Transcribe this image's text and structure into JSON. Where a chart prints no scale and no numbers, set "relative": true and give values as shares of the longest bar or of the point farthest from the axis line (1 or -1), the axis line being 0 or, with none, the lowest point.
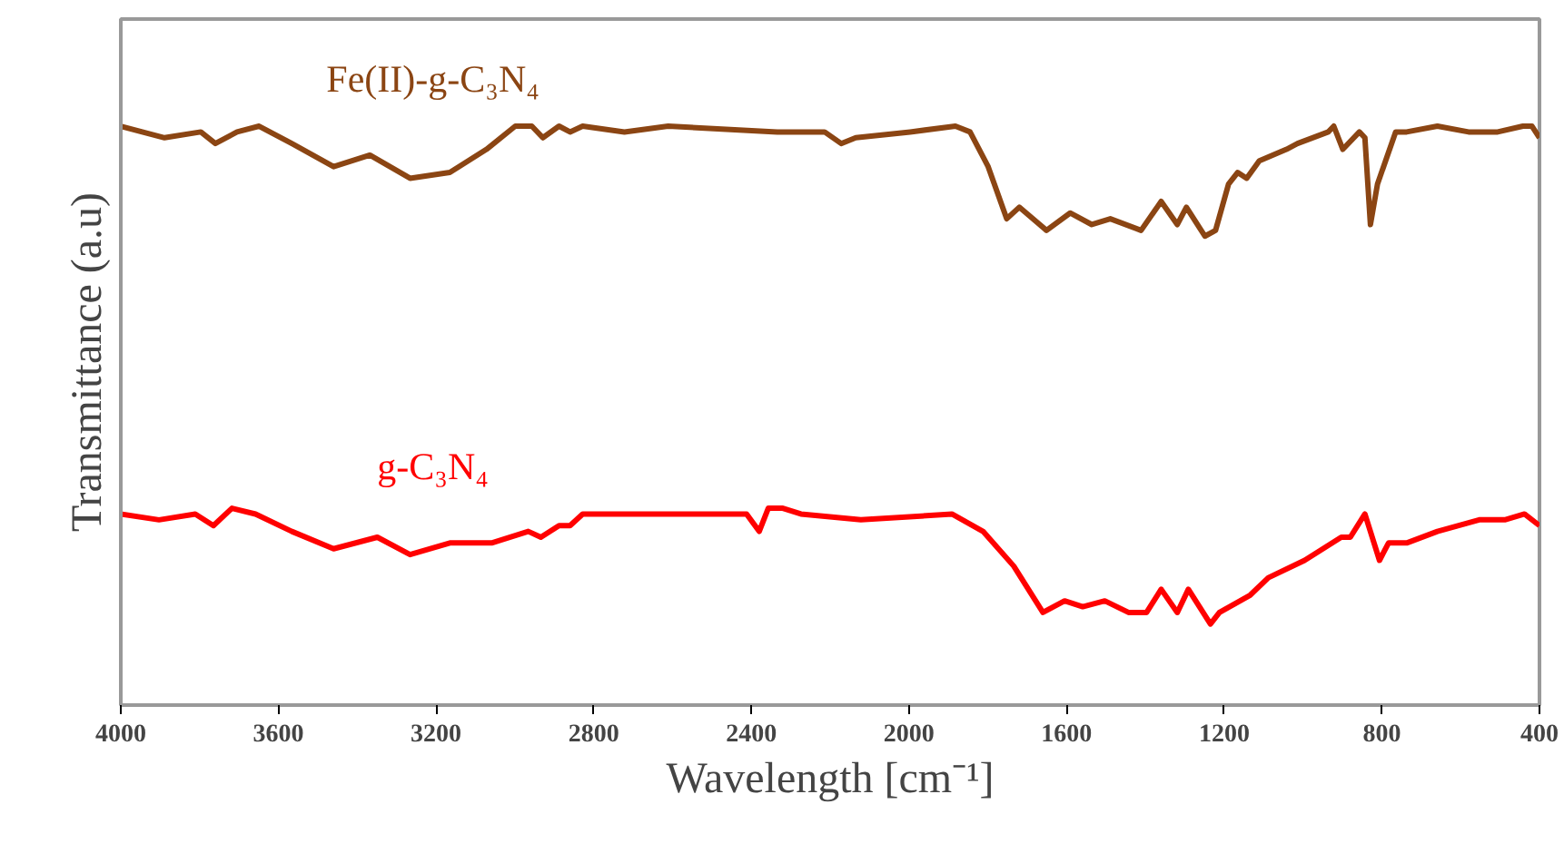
{
  "chart_data": {
    "type": "line",
    "xlabel": "Wavelength [cm⁻¹]",
    "ylabel": "Transmittance (a.u)",
    "relative": true,
    "xlim": [
      4000,
      400
    ],
    "xticks": [
      4000,
      3600,
      3200,
      2800,
      2400,
      2000,
      1600,
      1200,
      800,
      400
    ],
    "grid": false,
    "tick_labels": "x",
    "series": [
      {
        "name": "Fe(II)-g-C₃N₄",
        "color": "#8b4513",
        "x": [
          4000,
          3889,
          3797,
          3760,
          3705,
          3649,
          3566,
          3460,
          3368,
          3266,
          3165,
          3072,
          2999,
          2957,
          2929,
          2888,
          2860,
          2828,
          2722,
          2611,
          2334,
          2274,
          2214,
          2172,
          2135,
          1997,
          1882,
          1845,
          1799,
          1752,
          1720,
          1651,
          1591,
          1536,
          1489,
          1411,
          1360,
          1319,
          1296,
          1249,
          1222,
          1189,
          1166,
          1143,
          1111,
          1042,
          1014,
          936,
          922,
          899,
          857,
          843,
          829,
          811,
          765,
          737,
          659,
          580,
          506,
          442,
          419,
          400
        ],
        "values": [
          1.0,
          0.98,
          0.99,
          0.97,
          0.99,
          1.0,
          0.97,
          0.93,
          0.95,
          0.91,
          0.92,
          0.96,
          1.0,
          1.0,
          0.98,
          1.0,
          0.99,
          1.0,
          0.99,
          1.0,
          0.99,
          0.99,
          0.99,
          0.97,
          0.98,
          0.99,
          1.0,
          0.99,
          0.93,
          0.84,
          0.86,
          0.82,
          0.85,
          0.83,
          0.84,
          0.82,
          0.87,
          0.83,
          0.86,
          0.81,
          0.82,
          0.9,
          0.92,
          0.91,
          0.94,
          0.96,
          0.97,
          0.99,
          1.0,
          0.96,
          0.99,
          0.98,
          0.83,
          0.9,
          0.99,
          0.99,
          1.0,
          0.99,
          0.99,
          1.0,
          1.0,
          0.98
        ]
      },
      {
        "name": "g-C₃N₄",
        "color": "#ff0000",
        "x": [
          4000,
          3903,
          3811,
          3765,
          3718,
          3658,
          3566,
          3460,
          3349,
          3266,
          3165,
          3059,
          2966,
          2934,
          2888,
          2860,
          2828,
          2643,
          2412,
          2380,
          2357,
          2320,
          2274,
          2122,
          1891,
          1812,
          1734,
          1660,
          1605,
          1559,
          1503,
          1443,
          1397,
          1360,
          1319,
          1291,
          1235,
          1212,
          1134,
          1088,
          996,
          903,
          880,
          843,
          806,
          783,
          737,
          659,
          553,
          488,
          438,
          400
        ],
        "values": [
          0.33,
          0.32,
          0.33,
          0.31,
          0.34,
          0.33,
          0.3,
          0.27,
          0.29,
          0.26,
          0.28,
          0.28,
          0.3,
          0.29,
          0.31,
          0.31,
          0.33,
          0.33,
          0.33,
          0.3,
          0.34,
          0.34,
          0.33,
          0.32,
          0.33,
          0.3,
          0.24,
          0.16,
          0.18,
          0.17,
          0.18,
          0.16,
          0.16,
          0.2,
          0.16,
          0.2,
          0.14,
          0.16,
          0.19,
          0.22,
          0.25,
          0.29,
          0.29,
          0.33,
          0.25,
          0.28,
          0.28,
          0.3,
          0.32,
          0.32,
          0.33,
          0.31
        ]
      }
    ]
  }
}
